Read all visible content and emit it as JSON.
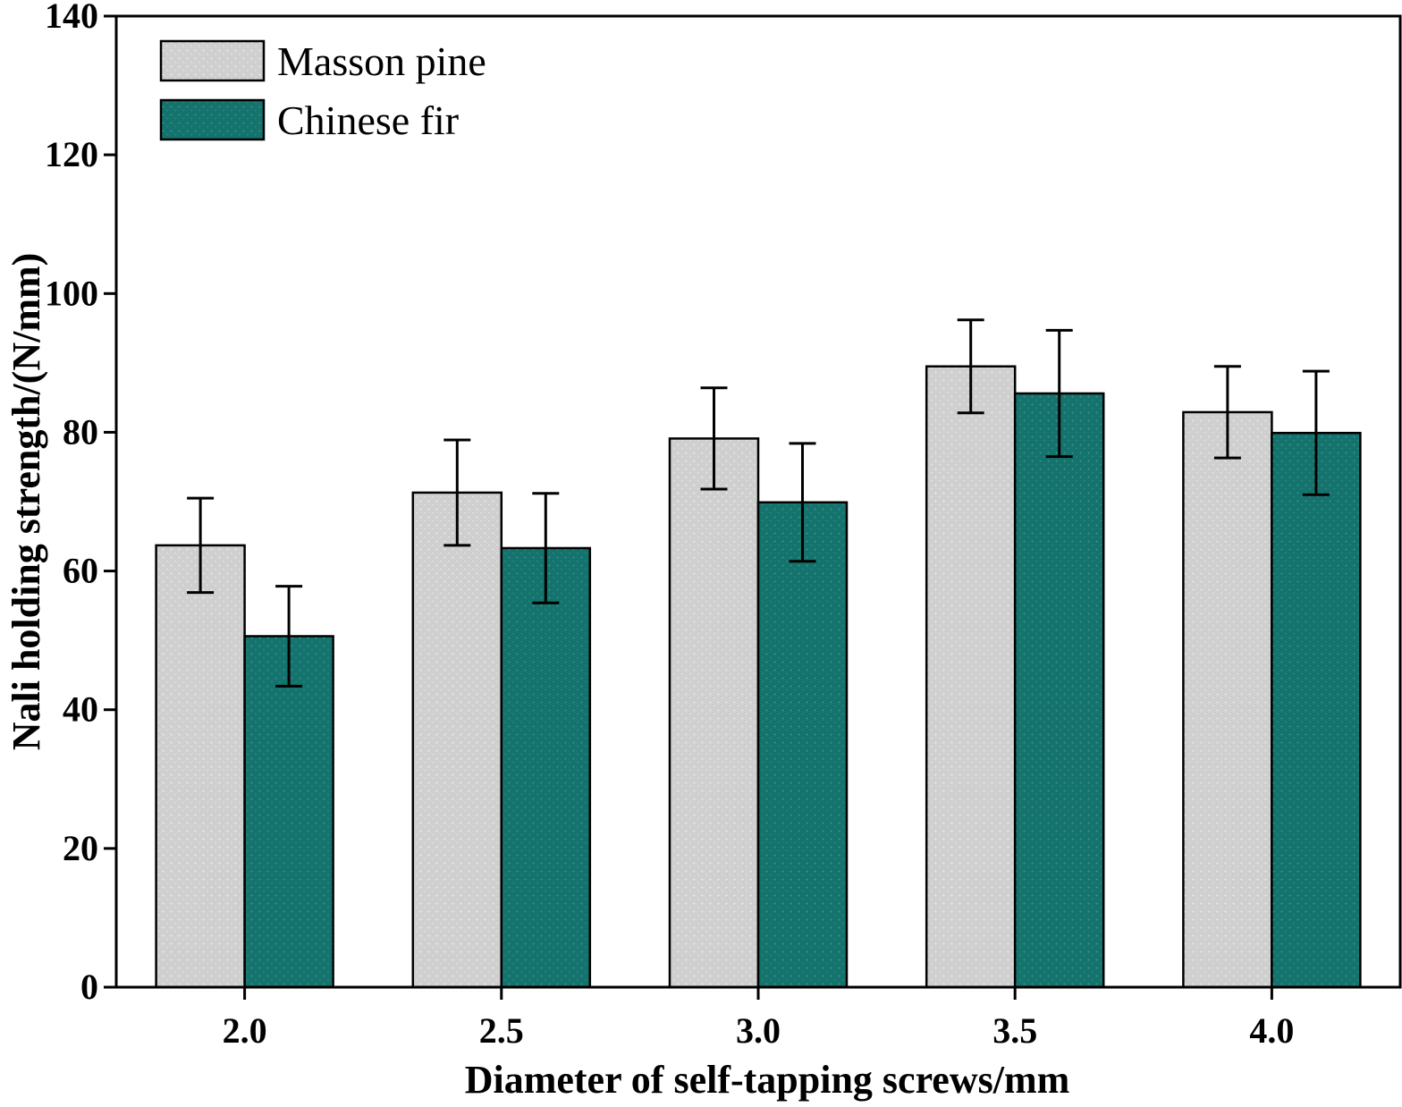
{
  "chart_data": {
    "type": "bar",
    "title": "",
    "xlabel": "Diameter of self-tapping screws/mm",
    "ylabel": "Nali holding strength/(N/mm)",
    "categories": [
      "2.0",
      "2.5",
      "3.0",
      "3.5",
      "4.0"
    ],
    "ylim": [
      0,
      140
    ],
    "yticks": [
      "0",
      "20",
      "40",
      "60",
      "80",
      "100",
      "120",
      "140"
    ],
    "legend_position": "top-left",
    "series": [
      {
        "name": "Masson pine",
        "color": "#cfcfcf",
        "values": [
          63.7,
          71.3,
          79.1,
          89.5,
          82.9
        ],
        "errors": [
          6.8,
          7.6,
          7.3,
          6.7,
          6.6
        ]
      },
      {
        "name": "Chinese fir",
        "color": "#14736d",
        "values": [
          50.6,
          63.3,
          69.9,
          85.6,
          79.9
        ],
        "errors": [
          7.2,
          7.9,
          8.5,
          9.1,
          8.9
        ]
      }
    ]
  }
}
